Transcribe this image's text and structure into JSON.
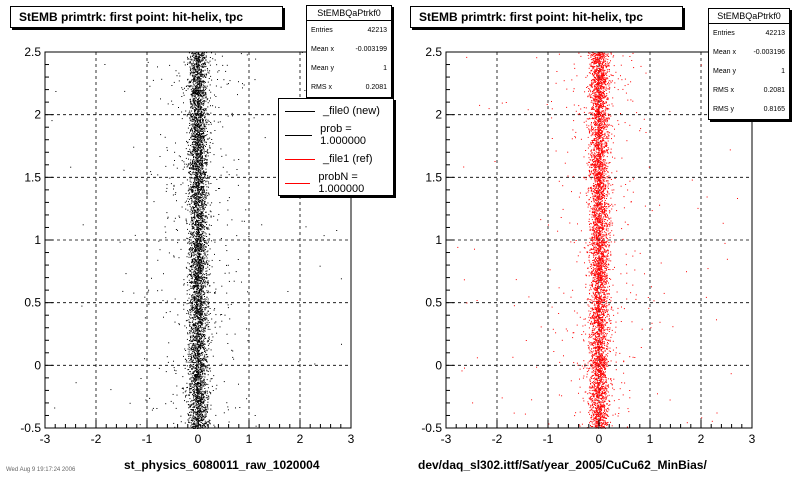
{
  "chart_data": [
    {
      "type": "scatter",
      "title": "StEMB primtrk: first point: hit-helix, tpc",
      "xlabel": "st_physics_6080011_raw_1020004",
      "ylabel": "",
      "xlim": [
        -3,
        3
      ],
      "ylim": [
        -0.5,
        2.5
      ],
      "x_ticks": [
        "-3",
        "-2",
        "-1",
        "0",
        "1",
        "2",
        "3"
      ],
      "y_ticks": [
        "-0.5",
        "0",
        "0.5",
        "1",
        "1.5",
        "2",
        "2.5"
      ],
      "grid": true,
      "series": [
        {
          "name": "_file0 (new)",
          "color": "#000000",
          "x_mean": -0.003199,
          "x_rms": 0.2081,
          "y_min": -0.5,
          "y_max": 2.5,
          "entries": 42213
        }
      ],
      "stats": {
        "title": "StEMBQaPtrkf0",
        "rows": [
          {
            "label": "Entries",
            "value": "42213"
          },
          {
            "label": "Mean x",
            "value": "-0.003199"
          },
          {
            "label": "Mean y",
            "value": "1"
          },
          {
            "label": "RMS x",
            "value": "0.2081"
          }
        ]
      },
      "legend": {
        "placement": "top-right",
        "entries": [
          {
            "label": "_file0 (new)",
            "color": "#000000"
          },
          {
            "label": "prob = 1.000000",
            "color": "#000000"
          },
          {
            "label": "_file1 (ref)",
            "color": "#ff0000"
          },
          {
            "label": "probN = 1.000000",
            "color": "#ff0000"
          }
        ]
      }
    },
    {
      "type": "scatter",
      "title": "StEMB primtrk: first point: hit-helix, tpc",
      "xlabel": "dev/daq_sl302.ittf/Sat/year_2005/CuCu62_MinBias/",
      "ylabel": "",
      "xlim": [
        -3,
        3
      ],
      "ylim": [
        -0.5,
        2.5
      ],
      "x_ticks": [
        "-3",
        "-2",
        "-1",
        "0",
        "1",
        "2",
        "3"
      ],
      "y_ticks": [
        "-0.5",
        "0",
        "0.5",
        "1",
        "1.5",
        "2",
        "2.5"
      ],
      "grid": true,
      "series": [
        {
          "name": "_file1 (ref)",
          "color": "#ff0000",
          "x_mean": -0.003196,
          "x_rms": 0.2081,
          "y_min": -0.5,
          "y_max": 2.5,
          "entries": 42213
        }
      ],
      "stats": {
        "title": "StEMBQaPtrkf0",
        "rows": [
          {
            "label": "Entries",
            "value": "42213"
          },
          {
            "label": "Mean x",
            "value": "-0.003196"
          },
          {
            "label": "Mean y",
            "value": "1"
          },
          {
            "label": "RMS x",
            "value": "0.2081"
          },
          {
            "label": "RMS y",
            "value": "0.8165"
          }
        ]
      }
    }
  ],
  "footer_stamp": "Wed Aug 9 19:17:24 2006"
}
